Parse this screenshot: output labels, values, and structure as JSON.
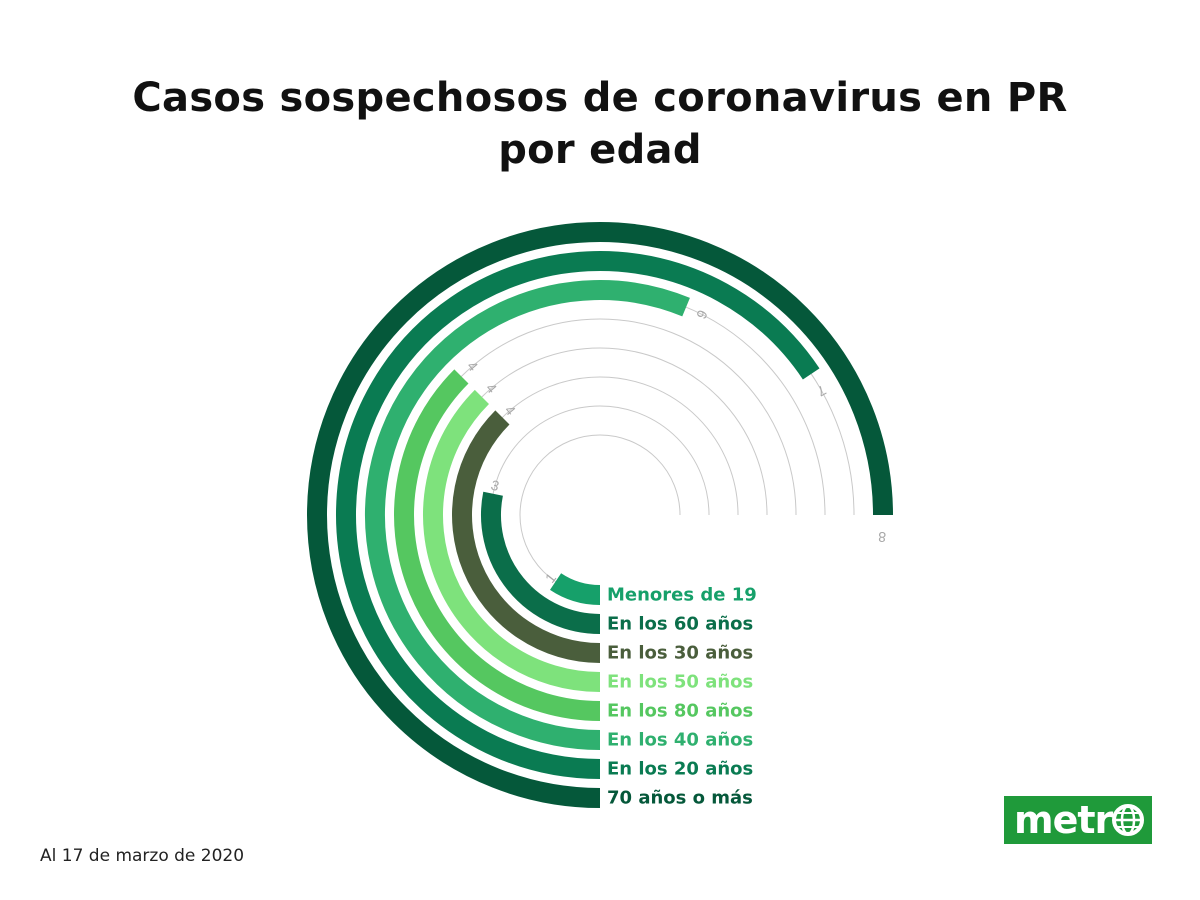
{
  "title_line1": "Casos sospechosos de coronavirus en PR",
  "title_line2": "por edad",
  "footnote": "Al 17 de marzo de 2020",
  "logo": {
    "text": "metr",
    "icon": "globe-icon",
    "background": "#1f9a3a"
  },
  "chart_data": {
    "type": "radial-bar",
    "title": "Casos sospechosos de coronavirus en PR por edad",
    "max_value": 8,
    "series": [
      {
        "name": "Menores de 19",
        "value": 1,
        "color": "#16a06a"
      },
      {
        "name": "En los 60 años",
        "value": 3,
        "color": "#0b6e4a"
      },
      {
        "name": "En los 30 años",
        "value": 4,
        "color": "#4a5e3c"
      },
      {
        "name": "En los 50 años",
        "value": 4,
        "color": "#7ee27c"
      },
      {
        "name": "En los 80 años",
        "value": 4,
        "color": "#55c760"
      },
      {
        "name": "En los 40 años",
        "value": 6,
        "color": "#2fb06f"
      },
      {
        "name": "En los 20 años",
        "value": 7,
        "color": "#0a7b52"
      },
      {
        "name": "70 años o más",
        "value": 8,
        "color": "#05583a"
      }
    ]
  }
}
